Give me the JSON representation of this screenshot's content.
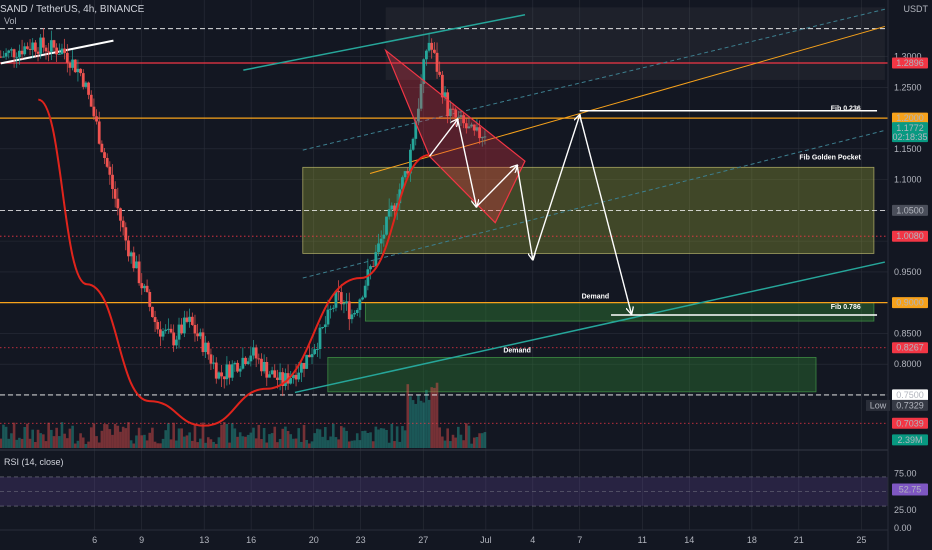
{
  "chart_data": {
    "type": "candlestick",
    "symbol": "SAND / TetherUS, 4h, BINANCE",
    "sub_label": "Vol",
    "currency": "USDT",
    "y_ticks": [
      1.3,
      1.25,
      1.15,
      1.1,
      0.95,
      0.85,
      0.8
    ],
    "y_tick_labels": [
      "1.3000",
      "1.2500",
      "1.1500",
      "1.1000",
      "0.9500",
      "0.8500",
      "0.8000"
    ],
    "x_labels": [
      {
        "label": "6",
        "x": 6
      },
      {
        "label": "9",
        "x": 9
      },
      {
        "label": "13",
        "x": 13
      },
      {
        "label": "16",
        "x": 16
      },
      {
        "label": "20",
        "x": 20
      },
      {
        "label": "23",
        "x": 23
      },
      {
        "label": "27",
        "x": 27
      },
      {
        "label": "Jul",
        "x": 31
      },
      {
        "label": "4",
        "x": 34
      },
      {
        "label": "7",
        "x": 37
      },
      {
        "label": "11",
        "x": 41
      },
      {
        "label": "14",
        "x": 44
      },
      {
        "label": "18",
        "x": 48
      },
      {
        "label": "21",
        "x": 51
      },
      {
        "label": "25",
        "x": 55
      }
    ],
    "price_tags": [
      {
        "label": "1.2896",
        "value": 1.2896,
        "bg": "#f23645",
        "fg": "#ffffff"
      },
      {
        "label": "1.2000",
        "value": 1.2,
        "bg": "#f7a21b",
        "fg": "#ffffff"
      },
      {
        "label": "1.1772",
        "value": 1.1772,
        "bg": "#089981",
        "fg": "#ffffff",
        "sub": "02:18:35"
      },
      {
        "label": "1.0500",
        "value": 1.05,
        "bg": "#4a4e5a",
        "fg": "#ffffff"
      },
      {
        "label": "1.0080",
        "value": 1.008,
        "bg": "#f23645",
        "fg": "#ffffff"
      },
      {
        "label": "0.9000",
        "value": 0.9,
        "bg": "#f7a21b",
        "fg": "#ffffff"
      },
      {
        "label": "0.8267",
        "value": 0.8267,
        "bg": "#f23645",
        "fg": "#ffffff"
      },
      {
        "label": "0.7500",
        "value": 0.75,
        "bg": "#ffffff",
        "fg": "#131722"
      },
      {
        "label": "0.7329",
        "value": 0.7329,
        "bg": "#363a45",
        "fg": "#ffffff",
        "prefix": "Low"
      },
      {
        "label": "0.7039",
        "value": 0.7039,
        "bg": "#f23645",
        "fg": "#ffffff"
      },
      {
        "label": "2.39M",
        "value": 0.677,
        "bg": "#089981",
        "fg": "#ffffff"
      }
    ],
    "horizontal_levels": [
      {
        "value": 1.2896,
        "color": "#f23645",
        "style": "solid"
      },
      {
        "value": 1.2,
        "color": "#f7a21b",
        "style": "solid"
      },
      {
        "value": 1.05,
        "color": "#ffffff",
        "style": "dashed"
      },
      {
        "value": 1.008,
        "color": "#f23645",
        "style": "dotted"
      },
      {
        "value": 0.9,
        "color": "#f7a21b",
        "style": "solid"
      },
      {
        "value": 0.8267,
        "color": "#f23645",
        "style": "dotted"
      },
      {
        "value": 0.75,
        "color": "#ffffff",
        "style": "dashed"
      },
      {
        "value": 0.7039,
        "color": "#f23645",
        "style": "dotted"
      },
      {
        "value": 1.3454,
        "color": "#ffffff",
        "style": "dashed"
      }
    ],
    "zones": [
      {
        "name": "Fib Golden Pocket",
        "x1": 19.3,
        "x2": 55.8,
        "y_top": 1.12,
        "y_bottom": 0.98,
        "fill": "#b8c43a",
        "opacity": 0.28,
        "border": "#d9d37a"
      },
      {
        "name": "Demand",
        "x1": 23.3,
        "x2": 55.8,
        "y_top": 0.9,
        "y_bottom": 0.87,
        "fill": "#2e7d32",
        "opacity": 0.45,
        "border": "#4caf50"
      },
      {
        "name": "Demand",
        "x1": 20.9,
        "x2": 52.1,
        "y_top": 0.811,
        "y_bottom": 0.755,
        "fill": "#2e7d32",
        "opacity": 0.4,
        "border": "#4caf50"
      }
    ],
    "zone_labels": [
      {
        "label": "Fib 0.236",
        "x": 54,
        "y": 1.212
      },
      {
        "label": "Fib Golden Pocket",
        "x": 53,
        "y": 1.133
      },
      {
        "label": "Demand",
        "x": 38,
        "y": 0.907
      },
      {
        "label": "Fib 0.786",
        "x": 54,
        "y": 0.89
      },
      {
        "label": "Demand",
        "x": 33,
        "y": 0.819
      }
    ],
    "trendlines": [
      {
        "x1": 0,
        "y1": 1.289,
        "x2": 7.2,
        "y2": 1.326,
        "color": "#ffffff",
        "width": 2
      },
      {
        "x1": 15.5,
        "y1": 1.278,
        "x2": 33.5,
        "y2": 1.368,
        "color": "#26a69a",
        "width": 1.5
      },
      {
        "x1": 18.8,
        "y1": 0.754,
        "x2": 56.5,
        "y2": 0.966,
        "color": "#26a69a",
        "width": 1.5
      },
      {
        "x1": 23.6,
        "y1": 1.11,
        "x2": 56.5,
        "y2": 1.349,
        "color": "#f7a21b",
        "width": 1
      },
      {
        "x1": 19.3,
        "y1": 1.148,
        "x2": 56.5,
        "y2": 1.377,
        "color": "#3d7f8f",
        "width": 1,
        "dash": "4,3"
      },
      {
        "x1": 19.3,
        "y1": 0.94,
        "x2": 56.5,
        "y2": 1.18,
        "color": "#3d7f8f",
        "width": 1,
        "dash": "4,3"
      },
      {
        "x1": 37,
        "y1": 1.212,
        "x2": 56,
        "y2": 1.212,
        "color": "#ffffff",
        "width": 1.5
      },
      {
        "x1": 39,
        "y1": 0.88,
        "x2": 56,
        "y2": 0.88,
        "color": "#ffffff",
        "width": 1.5
      }
    ],
    "channel": {
      "points": [
        [
          24.6,
          1.31
        ],
        [
          33.5,
          1.13
        ],
        [
          31.6,
          1.03
        ],
        [
          27.4,
          1.138
        ]
      ],
      "fill": "#f23645",
      "opacity": 0.3,
      "border": "#f23645"
    },
    "upper_box": {
      "x1": 24.6,
      "x2": 56.5,
      "y_top": 1.38,
      "y_bottom": 1.262,
      "fill": "#808080",
      "opacity": 0.1
    },
    "rounding_curve": {
      "points": [
        [
          2.4,
          1.23
        ],
        [
          5.5,
          0.93
        ],
        [
          9.5,
          0.74
        ],
        [
          13,
          0.7
        ],
        [
          17,
          0.76
        ],
        [
          23,
          0.94
        ],
        [
          27.4,
          1.14
        ]
      ],
      "color": "#e0241c"
    },
    "projection_path": {
      "points": [
        [
          27.4,
          1.138
        ],
        [
          29.2,
          1.198
        ],
        [
          30.4,
          1.056
        ],
        [
          33,
          1.123
        ],
        [
          34,
          0.97
        ],
        [
          37,
          1.205
        ],
        [
          40.3,
          0.882
        ]
      ],
      "color": "#ffffff"
    },
    "rsi": {
      "label": "RSI (14, close)",
      "value": "52.75",
      "ticks": [
        "75.00",
        "25.00",
        "0.00"
      ],
      "tick_values": [
        75,
        25,
        0
      ],
      "band": [
        30,
        70
      ]
    },
    "volume_axis_label": "2.39M",
    "colors": {
      "up": "#26a69a",
      "down": "#ef5350",
      "bg": "#131722",
      "grid": "#2a2e39"
    }
  }
}
